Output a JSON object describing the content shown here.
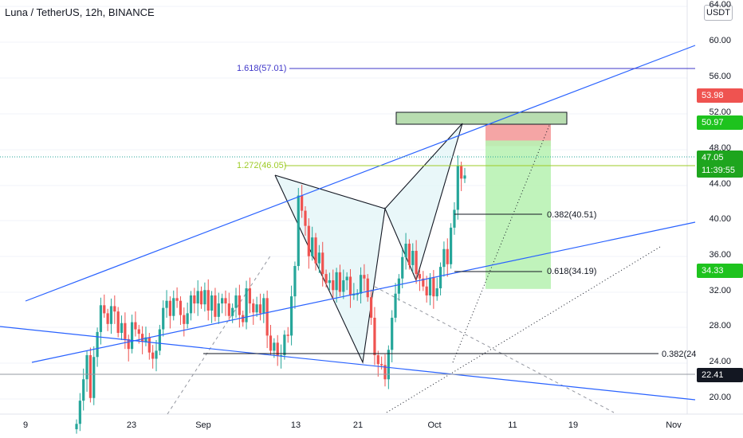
{
  "title": "Luna / TetherUS, 12h, BINANCE",
  "currency": "USDT",
  "colors": {
    "up": "#26a69a",
    "down": "#ef5350",
    "trend": "#2962ff",
    "fib_high": "#3f37c9",
    "fib_mid": "#9ecb26",
    "box": "#b8ddb0",
    "stop": "#f5a5a5",
    "target": "#b9f2b4"
  },
  "price_labels": [
    "64.00",
    "60.00",
    "56.00",
    "52.00",
    "48.00",
    "44.00",
    "40.00",
    "36.00",
    "32.00",
    "28.00",
    "24.00",
    "20.00"
  ],
  "badges": [
    {
      "text": "53.98",
      "bg": "#ef5350"
    },
    {
      "text": "50.97",
      "bg": "#1ec31e"
    },
    {
      "text": "47.05",
      "bg": "#1ea51e"
    },
    {
      "text": "11:39:55",
      "bg": "#1ea51e"
    },
    {
      "text": "34.33",
      "bg": "#1ec31e"
    },
    {
      "text": "22.41",
      "bg": "#131722"
    }
  ],
  "x_labels": [
    "9",
    "23",
    "Sep",
    "13",
    "21",
    "Oct",
    "11",
    "19",
    "Nov"
  ],
  "annotations": {
    "fib_1618": "1.618(57.01)",
    "fib_1272": "1.272(46.05)",
    "fib_0382_a": "0.382(40.51)",
    "fib_0618": "0.618(34.19)",
    "fib_0382_b": "0.382(24"
  },
  "chart_data": {
    "type": "candlestick",
    "title": "Luna / TetherUS, 12h, BINANCE",
    "y_axis_unit": "USDT",
    "ylim": [
      19,
      64
    ],
    "x_ticks": [
      "9",
      "23",
      "Sep",
      "13",
      "21",
      "Oct",
      "11",
      "19",
      "Nov"
    ],
    "levels": {
      "stop": 53.98,
      "entry": 50.97,
      "last_price": 47.05,
      "target": 34.33,
      "support": 22.41
    },
    "fibonacci": {
      "1.618": 57.01,
      "1.272": 46.05,
      "0.382_upper": 40.51,
      "0.618": 34.19,
      "0.382_lower": 24
    },
    "pattern_points": [
      34.5,
      44.5,
      24,
      41.5,
      33,
      50.5
    ],
    "candle_closes": [
      19.2,
      21.8,
      24.2,
      26.9,
      22.1,
      26.7,
      29.5,
      32.5,
      31.6,
      30.4,
      32.4,
      31.8,
      29.4,
      30.5,
      28.7,
      27.6,
      30.6,
      29.8,
      29.3,
      28.4,
      28.9,
      27.2,
      26.5,
      27.4,
      29.8,
      32.2,
      33.0,
      31.3,
      33.3,
      33.0,
      31.4,
      30.4,
      31.6,
      33.6,
      32.7,
      34.1,
      32.6,
      34.2,
      31.9,
      33.6,
      31.2,
      32.7,
      33.3,
      32.7,
      31.3,
      32.2,
      33.6,
      31.4,
      30.6,
      34.4,
      32.7,
      31.7,
      32.6,
      31.6,
      33.3,
      29.1,
      27.4,
      28.3,
      26.8,
      26.9,
      29.2,
      29.1,
      33.5,
      36.9,
      44.8,
      43.1,
      41.4,
      38.0,
      40.1,
      37.2,
      38.4,
      36.0,
      35.0,
      35.3,
      34.2,
      36.2,
      34.0,
      35.3,
      35.7,
      33.6,
      33.8,
      33.8,
      35.9,
      35.5,
      33.4,
      31.1,
      26.9,
      25.9,
      25.8,
      24.2,
      27.5,
      31.1,
      33.8,
      35.5,
      37.9,
      39.4,
      37.0,
      38.6,
      36.0,
      35.5,
      34.6,
      33.6,
      35.6,
      33.5,
      34.4,
      36.8,
      38.8,
      37.1,
      41.2,
      43.2,
      48.1,
      46.7,
      47.05
    ]
  }
}
